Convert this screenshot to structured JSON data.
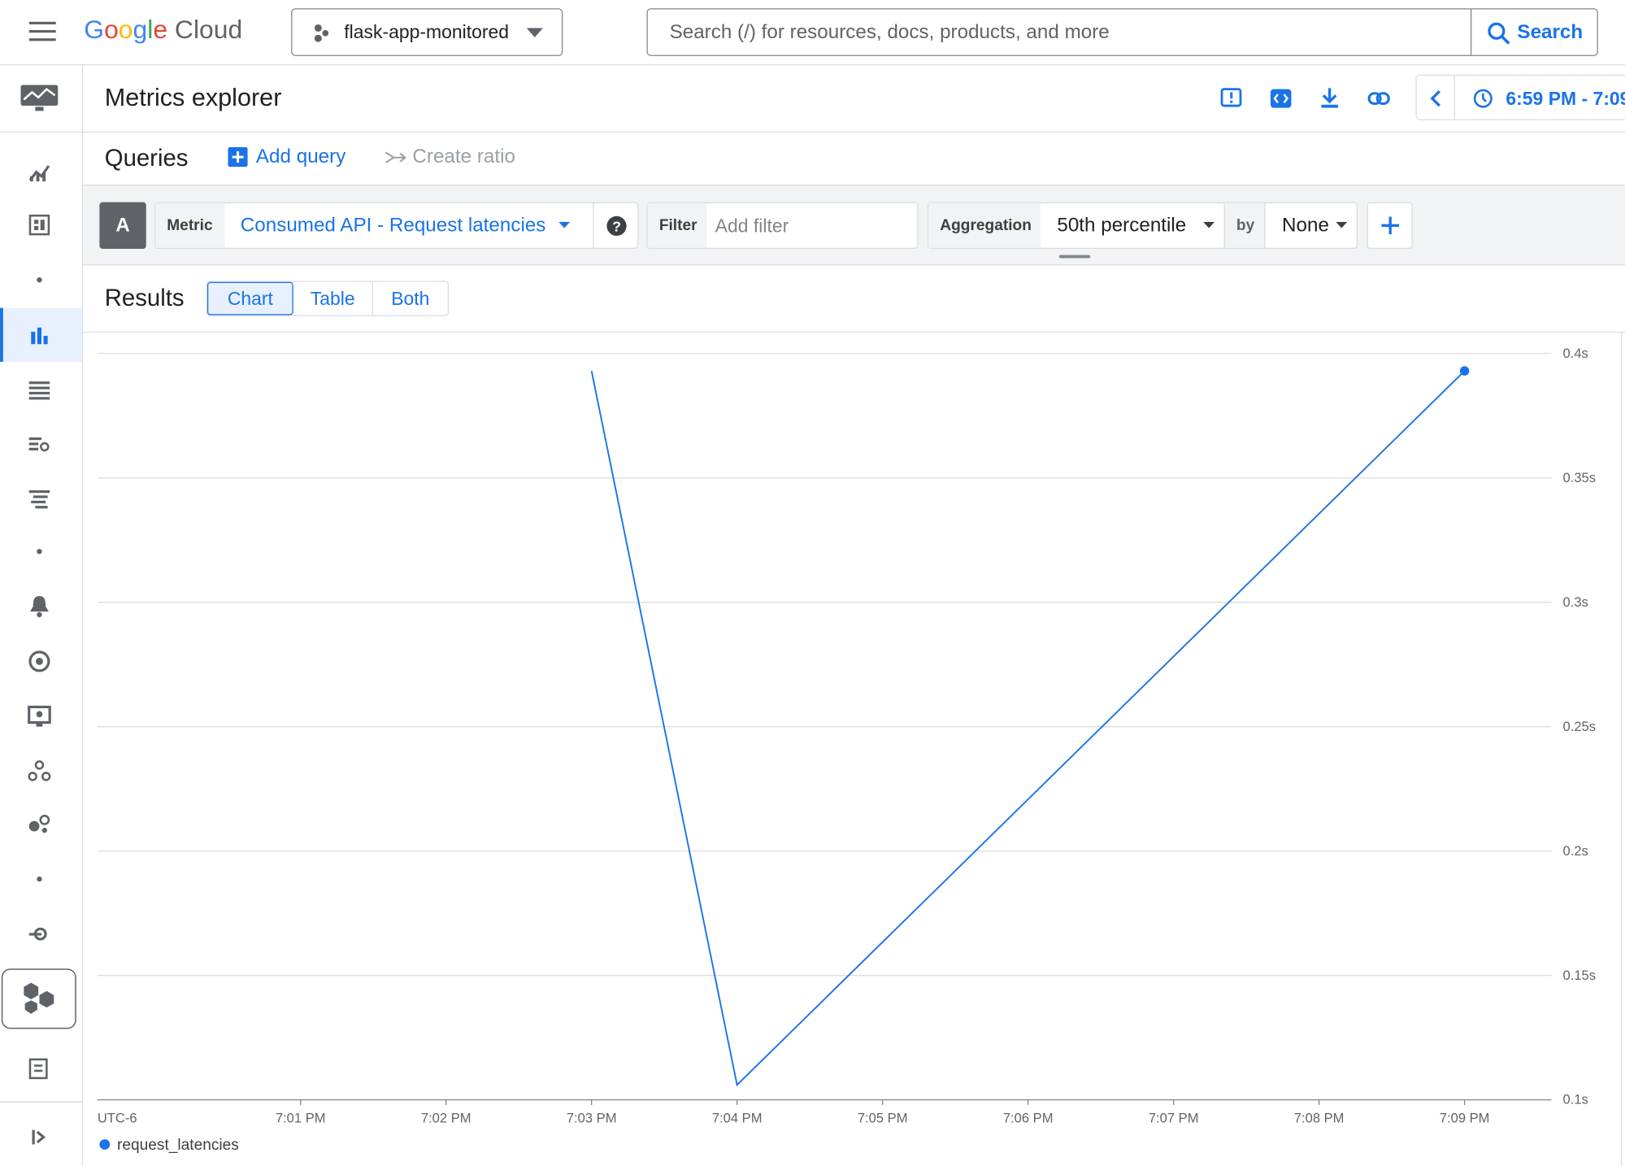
{
  "header": {
    "brand": "Google Cloud",
    "project": "flask-app-monitored",
    "search_placeholder": "Search (/) for resources, docs, products, and more",
    "search_button": "Search"
  },
  "page": {
    "title": "Metrics explorer",
    "time_range": "6:59 PM - 7:09"
  },
  "queries": {
    "title": "Queries",
    "add_query": "Add query",
    "create_ratio": "Create ratio",
    "query_letter": "A",
    "metric_label": "Metric",
    "metric": "Consumed API - Request latencies",
    "filter_label": "Filter",
    "filter_placeholder": "Add filter",
    "aggregation_label": "Aggregation",
    "aggregation": "50th percentile",
    "by_label": "by",
    "by": "None"
  },
  "results": {
    "title": "Results",
    "tabs": [
      "Chart",
      "Table",
      "Both"
    ]
  },
  "chart_data": {
    "type": "line",
    "x_axis_label": "UTC-6",
    "x": [
      "7:03 PM",
      "7:04 PM",
      "7:09 PM"
    ],
    "series": [
      {
        "name": "request_latencies",
        "color": "#1a73e8",
        "values": [
          0.393,
          0.106,
          0.393
        ]
      }
    ],
    "xticks": [
      "7:01 PM",
      "7:02 PM",
      "7:03 PM",
      "7:04 PM",
      "7:05 PM",
      "7:06 PM",
      "7:07 PM",
      "7:08 PM",
      "7:09 PM"
    ],
    "ylim": [
      0.1,
      0.4
    ],
    "yticks": [
      {
        "value": 0.1,
        "label": "0.1s"
      },
      {
        "value": 0.15,
        "label": "0.15s"
      },
      {
        "value": 0.2,
        "label": "0.2s"
      },
      {
        "value": 0.25,
        "label": "0.25s"
      },
      {
        "value": 0.3,
        "label": "0.3s"
      },
      {
        "value": 0.35,
        "label": "0.35s"
      },
      {
        "value": 0.4,
        "label": "0.4s"
      }
    ],
    "grid": true
  }
}
